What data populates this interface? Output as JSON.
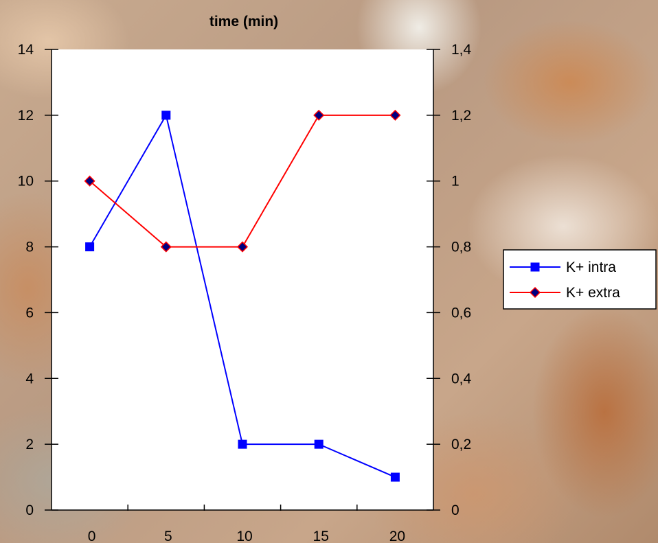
{
  "chart_data": {
    "type": "line",
    "title": "time (min)",
    "categories": [
      "0",
      "5",
      "10",
      "15",
      "20"
    ],
    "y_left": {
      "ylim": [
        0,
        14
      ],
      "ticks": [
        "0",
        "2",
        "4",
        "6",
        "8",
        "10",
        "12",
        "14"
      ]
    },
    "y_right": {
      "ylim": [
        0,
        1.4
      ],
      "ticks": [
        "0",
        "0,2",
        "0,4",
        "0,6",
        "0,8",
        "1",
        "1,2",
        "1,4"
      ]
    },
    "series": [
      {
        "name": "K+ intra",
        "axis": "left",
        "values": [
          8,
          12,
          2,
          2,
          1
        ],
        "color": "#0000ff",
        "marker": "square"
      },
      {
        "name": "K+ extra",
        "axis": "right",
        "values": [
          1.0,
          0.8,
          0.8,
          1.2,
          1.2
        ],
        "color": "#ff0000",
        "marker": "diamond"
      }
    ],
    "grid": false,
    "legend": "right",
    "plot_background": "#ffffff"
  }
}
